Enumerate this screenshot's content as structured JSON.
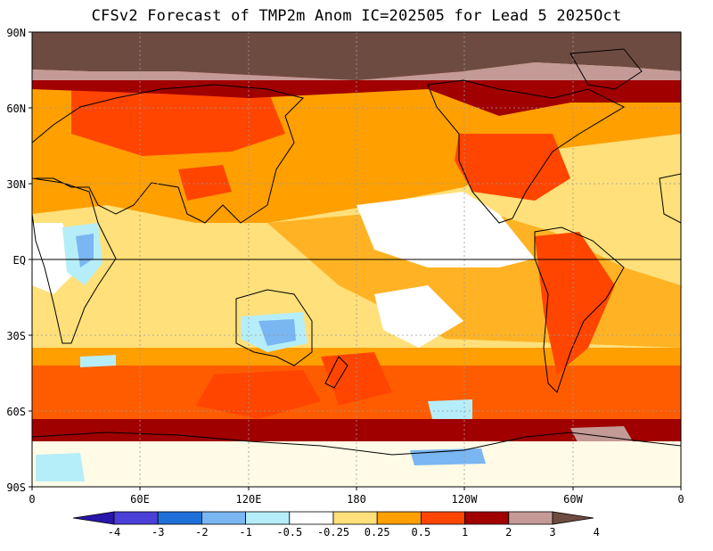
{
  "title": "CFSv2 Forecast of TMP2m Anom IC=202505 for Lead 5 2025Oct",
  "map": {
    "lat_labels": [
      "90N",
      "60N",
      "30N",
      "EQ",
      "30S",
      "60S",
      "90S"
    ],
    "lon_labels": [
      "0",
      "60E",
      "120E",
      "180",
      "120W",
      "60W",
      "0"
    ]
  },
  "colorbar": {
    "labels": [
      "-4",
      "-3",
      "-2",
      "-1",
      "-0.5",
      "-0.25",
      "0.25",
      "0.5",
      "1",
      "2",
      "3",
      "4"
    ],
    "colors": [
      "#2a16a8",
      "#4a3fd6",
      "#1f6fd8",
      "#79b6f2",
      "#b5eef8",
      "#ffffff",
      "#ffe07a",
      "#ff9f00",
      "#ff4500",
      "#a00000",
      "#c49a96",
      "#6e4b40"
    ]
  },
  "palette": {
    "land_outline": "#000000",
    "grid": "#9a9a9a"
  }
}
